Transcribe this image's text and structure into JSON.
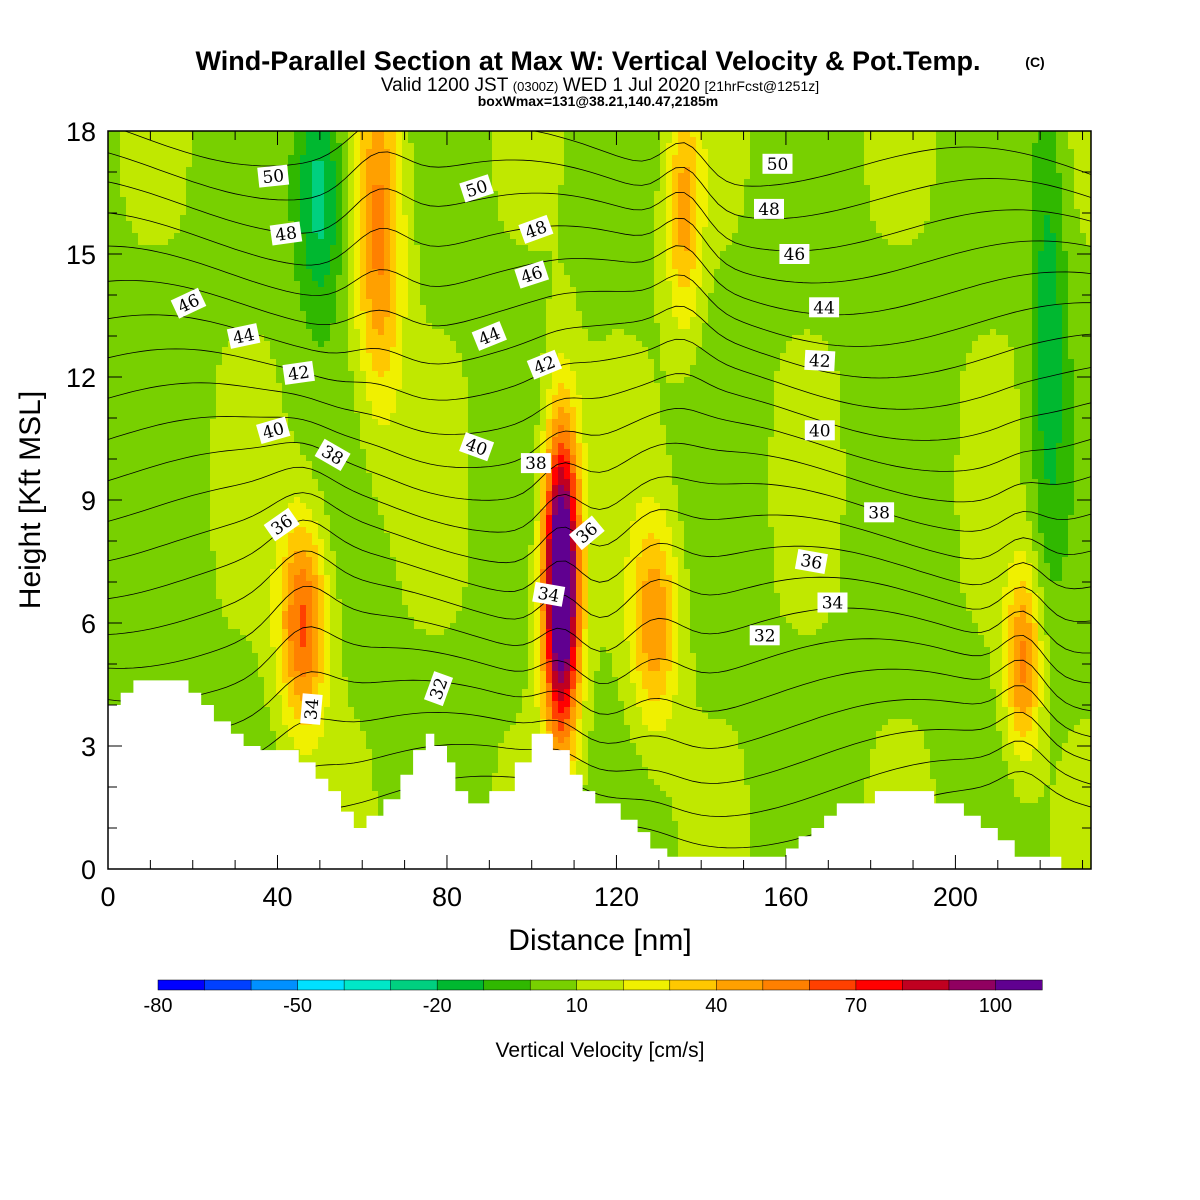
{
  "header": {
    "title": "Wind-Parallel Section at Max W: Vertical Velocity & Pot.Temp.",
    "copyright": "(C)",
    "valid_main": "Valid 1200 JST",
    "valid_utc": "(0300Z)",
    "valid_date": "WED 1 Jul 2020",
    "valid_fcst": "[21hrFcst@1251z]",
    "box_info": "boxWmax=131@38.21,140.47,2185m"
  },
  "colors": {
    "scale": [
      "#0000ff",
      "#0040ff",
      "#0090ff",
      "#00e0ff",
      "#00e8c8",
      "#00d080",
      "#00b830",
      "#30b800",
      "#78d000",
      "#c0e800",
      "#f0f000",
      "#ffc800",
      "#ffa000",
      "#ff8000",
      "#ff4000",
      "#ff0000",
      "#c00020",
      "#900060",
      "#600090"
    ],
    "terrain": "#ffffff",
    "contour": "#000000"
  },
  "chart_data": {
    "type": "heatmap",
    "xlabel": "Distance [nm]",
    "ylabel": "Height [Kft MSL]",
    "xlim": [
      0,
      232
    ],
    "ylim": [
      0,
      18
    ],
    "x_ticks": [
      0,
      40,
      80,
      120,
      160,
      200
    ],
    "y_ticks": [
      0,
      3,
      6,
      9,
      12,
      15,
      18
    ],
    "colorbar": {
      "label": "Vertical Velocity [cm/s]",
      "ticks": [
        "-80",
        "-50",
        "-20",
        "10",
        "40",
        "70",
        "100"
      ],
      "levels": [
        -80,
        -70,
        -60,
        -50,
        -40,
        -30,
        -20,
        -10,
        0,
        10,
        20,
        30,
        40,
        50,
        60,
        70,
        80,
        90,
        100,
        110
      ]
    },
    "velocity_features": [
      {
        "x": 46,
        "y": 6.0,
        "value": 55,
        "sx": 4,
        "sy": 1.8
      },
      {
        "x": 64,
        "y": 15.5,
        "value": 45,
        "sx": 4,
        "sy": 3
      },
      {
        "x": 107,
        "y": 7.0,
        "value": 131,
        "sx": 3,
        "sy": 2.6
      },
      {
        "x": 129,
        "y": 6.0,
        "value": 40,
        "sx": 4,
        "sy": 1.8
      },
      {
        "x": 136,
        "y": 16.0,
        "value": 35,
        "sx": 3,
        "sy": 2
      },
      {
        "x": 216,
        "y": 5.0,
        "value": 45,
        "sx": 3,
        "sy": 1.6
      },
      {
        "x": 50,
        "y": 16.5,
        "value": -35,
        "sx": 4,
        "sy": 2
      },
      {
        "x": 222,
        "y": 13.0,
        "value": -25,
        "sx": 3,
        "sy": 4
      }
    ],
    "terrain_profile": [
      [
        0,
        4.0
      ],
      [
        3,
        4.0
      ],
      [
        3,
        4.3
      ],
      [
        6,
        4.3
      ],
      [
        6,
        4.6
      ],
      [
        19,
        4.6
      ],
      [
        19,
        4.3
      ],
      [
        22,
        4.3
      ],
      [
        22,
        4.0
      ],
      [
        25,
        4.0
      ],
      [
        25,
        3.6
      ],
      [
        29,
        3.6
      ],
      [
        29,
        3.3
      ],
      [
        32,
        3.3
      ],
      [
        32,
        3.0
      ],
      [
        36,
        3.0
      ],
      [
        36,
        2.9
      ],
      [
        45,
        2.9
      ],
      [
        45,
        2.6
      ],
      [
        49,
        2.6
      ],
      [
        49,
        2.2
      ],
      [
        52,
        2.2
      ],
      [
        52,
        1.9
      ],
      [
        55,
        1.9
      ],
      [
        55,
        1.4
      ],
      [
        58,
        1.4
      ],
      [
        58,
        1.0
      ],
      [
        61,
        1.0
      ],
      [
        61,
        1.3
      ],
      [
        65,
        1.3
      ],
      [
        65,
        1.7
      ],
      [
        69,
        1.7
      ],
      [
        69,
        2.3
      ],
      [
        72,
        2.3
      ],
      [
        72,
        2.9
      ],
      [
        75,
        2.9
      ],
      [
        75,
        3.3
      ],
      [
        77,
        3.3
      ],
      [
        77,
        3.0
      ],
      [
        80,
        3.0
      ],
      [
        80,
        2.6
      ],
      [
        82,
        2.6
      ],
      [
        82,
        1.9
      ],
      [
        85,
        1.9
      ],
      [
        85,
        1.6
      ],
      [
        90,
        1.6
      ],
      [
        90,
        1.9
      ],
      [
        96,
        1.9
      ],
      [
        96,
        2.6
      ],
      [
        100,
        2.6
      ],
      [
        100,
        3.3
      ],
      [
        105,
        3.3
      ],
      [
        105,
        2.9
      ],
      [
        109,
        2.9
      ],
      [
        109,
        2.3
      ],
      [
        112,
        2.3
      ],
      [
        112,
        1.9
      ],
      [
        115,
        1.9
      ],
      [
        115,
        1.6
      ],
      [
        121,
        1.6
      ],
      [
        121,
        1.2
      ],
      [
        125,
        1.2
      ],
      [
        125,
        0.9
      ],
      [
        128,
        0.9
      ],
      [
        128,
        0.5
      ],
      [
        132,
        0.5
      ],
      [
        132,
        0.3
      ],
      [
        160,
        0.3
      ],
      [
        160,
        0.5
      ],
      [
        163,
        0.5
      ],
      [
        163,
        0.8
      ],
      [
        166,
        0.8
      ],
      [
        166,
        1.0
      ],
      [
        169,
        1.0
      ],
      [
        169,
        1.3
      ],
      [
        172,
        1.3
      ],
      [
        172,
        1.6
      ],
      [
        181,
        1.6
      ],
      [
        181,
        1.9
      ],
      [
        195,
        1.9
      ],
      [
        195,
        1.6
      ],
      [
        202,
        1.6
      ],
      [
        202,
        1.3
      ],
      [
        206,
        1.3
      ],
      [
        206,
        1.0
      ],
      [
        210,
        1.0
      ],
      [
        210,
        0.7
      ],
      [
        214,
        0.7
      ],
      [
        214,
        0.3
      ],
      [
        225,
        0.3
      ],
      [
        225,
        0
      ],
      [
        0,
        0
      ]
    ],
    "theta_labels": [
      {
        "text": "50",
        "x": 39,
        "y": 16.9,
        "angle": -6
      },
      {
        "text": "50",
        "x": 87,
        "y": 16.6,
        "angle": -18
      },
      {
        "text": "50",
        "x": 158,
        "y": 17.2,
        "angle": 0
      },
      {
        "text": "48",
        "x": 42,
        "y": 15.5,
        "angle": -8
      },
      {
        "text": "48",
        "x": 101,
        "y": 15.6,
        "angle": -20
      },
      {
        "text": "48",
        "x": 156,
        "y": 16.1,
        "angle": 0
      },
      {
        "text": "46",
        "x": 19,
        "y": 13.8,
        "angle": -25
      },
      {
        "text": "46",
        "x": 100,
        "y": 14.5,
        "angle": -18
      },
      {
        "text": "46",
        "x": 162,
        "y": 15.0,
        "angle": 0
      },
      {
        "text": "44",
        "x": 32,
        "y": 13.0,
        "angle": -12
      },
      {
        "text": "44",
        "x": 90,
        "y": 13.0,
        "angle": -22
      },
      {
        "text": "44",
        "x": 169,
        "y": 13.7,
        "angle": 0
      },
      {
        "text": "42",
        "x": 45,
        "y": 12.1,
        "angle": -8
      },
      {
        "text": "42",
        "x": 103,
        "y": 12.3,
        "angle": -22
      },
      {
        "text": "42",
        "x": 168,
        "y": 12.4,
        "angle": 3
      },
      {
        "text": "40",
        "x": 39,
        "y": 10.7,
        "angle": -16
      },
      {
        "text": "40",
        "x": 87,
        "y": 10.3,
        "angle": 20
      },
      {
        "text": "40",
        "x": 168,
        "y": 10.7,
        "angle": 0
      },
      {
        "text": "38",
        "x": 53,
        "y": 10.1,
        "angle": 30
      },
      {
        "text": "38",
        "x": 101,
        "y": 9.9,
        "angle": 0
      },
      {
        "text": "38",
        "x": 182,
        "y": 8.7,
        "angle": 0
      },
      {
        "text": "36",
        "x": 41,
        "y": 8.4,
        "angle": -35
      },
      {
        "text": "36",
        "x": 113,
        "y": 8.2,
        "angle": -40
      },
      {
        "text": "36",
        "x": 166,
        "y": 7.5,
        "angle": 10
      },
      {
        "text": "34",
        "x": 104,
        "y": 6.7,
        "angle": 10
      },
      {
        "text": "34",
        "x": 171,
        "y": 6.5,
        "angle": 0
      },
      {
        "text": "34",
        "x": 48,
        "y": 3.9,
        "angle": -85
      },
      {
        "text": "32",
        "x": 155,
        "y": 5.7,
        "angle": 0
      },
      {
        "text": "32",
        "x": 78,
        "y": 4.4,
        "angle": -70
      }
    ]
  }
}
